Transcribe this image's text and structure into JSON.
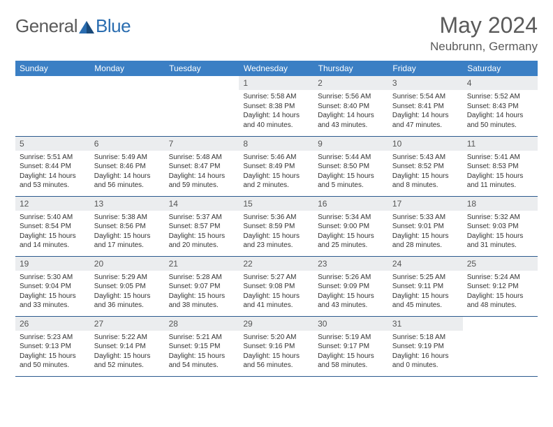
{
  "brand": {
    "general": "General",
    "blue": "Blue"
  },
  "title": "May 2024",
  "location": "Neubrunn, Germany",
  "colors": {
    "header_bg": "#3b7fc4",
    "header_text": "#ffffff",
    "daynum_bg": "#ebedef",
    "border": "#2b5a8e",
    "brand_blue": "#2a6db0",
    "brand_gray": "#5a5a5a"
  },
  "weekdays": [
    "Sunday",
    "Monday",
    "Tuesday",
    "Wednesday",
    "Thursday",
    "Friday",
    "Saturday"
  ],
  "weeks": [
    [
      {
        "n": "",
        "sr": "",
        "ss": "",
        "dl": ""
      },
      {
        "n": "",
        "sr": "",
        "ss": "",
        "dl": ""
      },
      {
        "n": "",
        "sr": "",
        "ss": "",
        "dl": ""
      },
      {
        "n": "1",
        "sr": "Sunrise: 5:58 AM",
        "ss": "Sunset: 8:38 PM",
        "dl": "Daylight: 14 hours and 40 minutes."
      },
      {
        "n": "2",
        "sr": "Sunrise: 5:56 AM",
        "ss": "Sunset: 8:40 PM",
        "dl": "Daylight: 14 hours and 43 minutes."
      },
      {
        "n": "3",
        "sr": "Sunrise: 5:54 AM",
        "ss": "Sunset: 8:41 PM",
        "dl": "Daylight: 14 hours and 47 minutes."
      },
      {
        "n": "4",
        "sr": "Sunrise: 5:52 AM",
        "ss": "Sunset: 8:43 PM",
        "dl": "Daylight: 14 hours and 50 minutes."
      }
    ],
    [
      {
        "n": "5",
        "sr": "Sunrise: 5:51 AM",
        "ss": "Sunset: 8:44 PM",
        "dl": "Daylight: 14 hours and 53 minutes."
      },
      {
        "n": "6",
        "sr": "Sunrise: 5:49 AM",
        "ss": "Sunset: 8:46 PM",
        "dl": "Daylight: 14 hours and 56 minutes."
      },
      {
        "n": "7",
        "sr": "Sunrise: 5:48 AM",
        "ss": "Sunset: 8:47 PM",
        "dl": "Daylight: 14 hours and 59 minutes."
      },
      {
        "n": "8",
        "sr": "Sunrise: 5:46 AM",
        "ss": "Sunset: 8:49 PM",
        "dl": "Daylight: 15 hours and 2 minutes."
      },
      {
        "n": "9",
        "sr": "Sunrise: 5:44 AM",
        "ss": "Sunset: 8:50 PM",
        "dl": "Daylight: 15 hours and 5 minutes."
      },
      {
        "n": "10",
        "sr": "Sunrise: 5:43 AM",
        "ss": "Sunset: 8:52 PM",
        "dl": "Daylight: 15 hours and 8 minutes."
      },
      {
        "n": "11",
        "sr": "Sunrise: 5:41 AM",
        "ss": "Sunset: 8:53 PM",
        "dl": "Daylight: 15 hours and 11 minutes."
      }
    ],
    [
      {
        "n": "12",
        "sr": "Sunrise: 5:40 AM",
        "ss": "Sunset: 8:54 PM",
        "dl": "Daylight: 15 hours and 14 minutes."
      },
      {
        "n": "13",
        "sr": "Sunrise: 5:38 AM",
        "ss": "Sunset: 8:56 PM",
        "dl": "Daylight: 15 hours and 17 minutes."
      },
      {
        "n": "14",
        "sr": "Sunrise: 5:37 AM",
        "ss": "Sunset: 8:57 PM",
        "dl": "Daylight: 15 hours and 20 minutes."
      },
      {
        "n": "15",
        "sr": "Sunrise: 5:36 AM",
        "ss": "Sunset: 8:59 PM",
        "dl": "Daylight: 15 hours and 23 minutes."
      },
      {
        "n": "16",
        "sr": "Sunrise: 5:34 AM",
        "ss": "Sunset: 9:00 PM",
        "dl": "Daylight: 15 hours and 25 minutes."
      },
      {
        "n": "17",
        "sr": "Sunrise: 5:33 AM",
        "ss": "Sunset: 9:01 PM",
        "dl": "Daylight: 15 hours and 28 minutes."
      },
      {
        "n": "18",
        "sr": "Sunrise: 5:32 AM",
        "ss": "Sunset: 9:03 PM",
        "dl": "Daylight: 15 hours and 31 minutes."
      }
    ],
    [
      {
        "n": "19",
        "sr": "Sunrise: 5:30 AM",
        "ss": "Sunset: 9:04 PM",
        "dl": "Daylight: 15 hours and 33 minutes."
      },
      {
        "n": "20",
        "sr": "Sunrise: 5:29 AM",
        "ss": "Sunset: 9:05 PM",
        "dl": "Daylight: 15 hours and 36 minutes."
      },
      {
        "n": "21",
        "sr": "Sunrise: 5:28 AM",
        "ss": "Sunset: 9:07 PM",
        "dl": "Daylight: 15 hours and 38 minutes."
      },
      {
        "n": "22",
        "sr": "Sunrise: 5:27 AM",
        "ss": "Sunset: 9:08 PM",
        "dl": "Daylight: 15 hours and 41 minutes."
      },
      {
        "n": "23",
        "sr": "Sunrise: 5:26 AM",
        "ss": "Sunset: 9:09 PM",
        "dl": "Daylight: 15 hours and 43 minutes."
      },
      {
        "n": "24",
        "sr": "Sunrise: 5:25 AM",
        "ss": "Sunset: 9:11 PM",
        "dl": "Daylight: 15 hours and 45 minutes."
      },
      {
        "n": "25",
        "sr": "Sunrise: 5:24 AM",
        "ss": "Sunset: 9:12 PM",
        "dl": "Daylight: 15 hours and 48 minutes."
      }
    ],
    [
      {
        "n": "26",
        "sr": "Sunrise: 5:23 AM",
        "ss": "Sunset: 9:13 PM",
        "dl": "Daylight: 15 hours and 50 minutes."
      },
      {
        "n": "27",
        "sr": "Sunrise: 5:22 AM",
        "ss": "Sunset: 9:14 PM",
        "dl": "Daylight: 15 hours and 52 minutes."
      },
      {
        "n": "28",
        "sr": "Sunrise: 5:21 AM",
        "ss": "Sunset: 9:15 PM",
        "dl": "Daylight: 15 hours and 54 minutes."
      },
      {
        "n": "29",
        "sr": "Sunrise: 5:20 AM",
        "ss": "Sunset: 9:16 PM",
        "dl": "Daylight: 15 hours and 56 minutes."
      },
      {
        "n": "30",
        "sr": "Sunrise: 5:19 AM",
        "ss": "Sunset: 9:17 PM",
        "dl": "Daylight: 15 hours and 58 minutes."
      },
      {
        "n": "31",
        "sr": "Sunrise: 5:18 AM",
        "ss": "Sunset: 9:19 PM",
        "dl": "Daylight: 16 hours and 0 minutes."
      },
      {
        "n": "",
        "sr": "",
        "ss": "",
        "dl": ""
      }
    ]
  ]
}
